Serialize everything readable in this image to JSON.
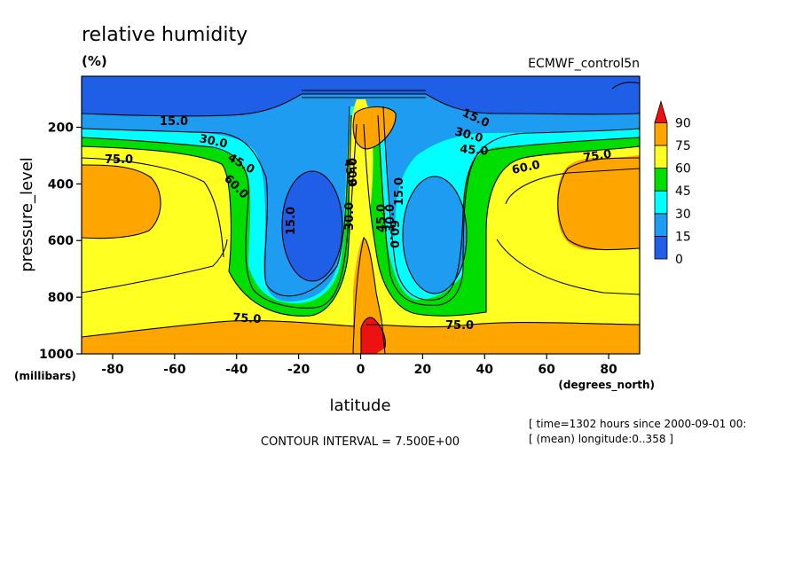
{
  "chart_data": {
    "type": "heatmap",
    "subtype": "filled-contour",
    "title": "relative humidity",
    "units": "(%)",
    "dataset": "ECMWF_control5n",
    "xlabel": "latitude",
    "x_units": "(degrees_north)",
    "ylabel": "pressure_level",
    "y_units": "(millibars)",
    "xlim": [
      -90,
      90
    ],
    "ylim": [
      1000,
      20
    ],
    "y_inverted": true,
    "x_ticks": [
      -80,
      -60,
      -40,
      -20,
      0,
      20,
      40,
      60,
      80
    ],
    "y_ticks": [
      200,
      400,
      600,
      800,
      1000
    ],
    "grid": false,
    "legend_position": "right",
    "colorbar": {
      "levels": [
        0,
        15,
        30,
        45,
        60,
        75,
        90
      ],
      "labels": [
        "0",
        "15",
        "30",
        "45",
        "60",
        "75",
        "90"
      ],
      "colors": [
        "#1F5FE8",
        "#1E9CF2",
        "#00FFFF",
        "#00DE00",
        "#FFFF22",
        "#FFA500",
        "#EE1111"
      ]
    },
    "contour_interval_text": "CONTOUR INTERVAL = 7.500E+00",
    "contour_labels": [
      "15.0",
      "30.0",
      "45.0",
      "60.0",
      "75.0",
      "15.0",
      "30.0",
      "45.0",
      "60.0",
      "15.0",
      "30.0",
      "45.0",
      "60.0",
      "75.0",
      "15.0",
      "30.0",
      "45.0",
      "60.0",
      "75.0",
      "75.0"
    ],
    "metadata_lines": [
      "[ time=1302 hours since 2000-09-01 00:",
      "[ (mean) longitude:0..358 ]"
    ]
  }
}
